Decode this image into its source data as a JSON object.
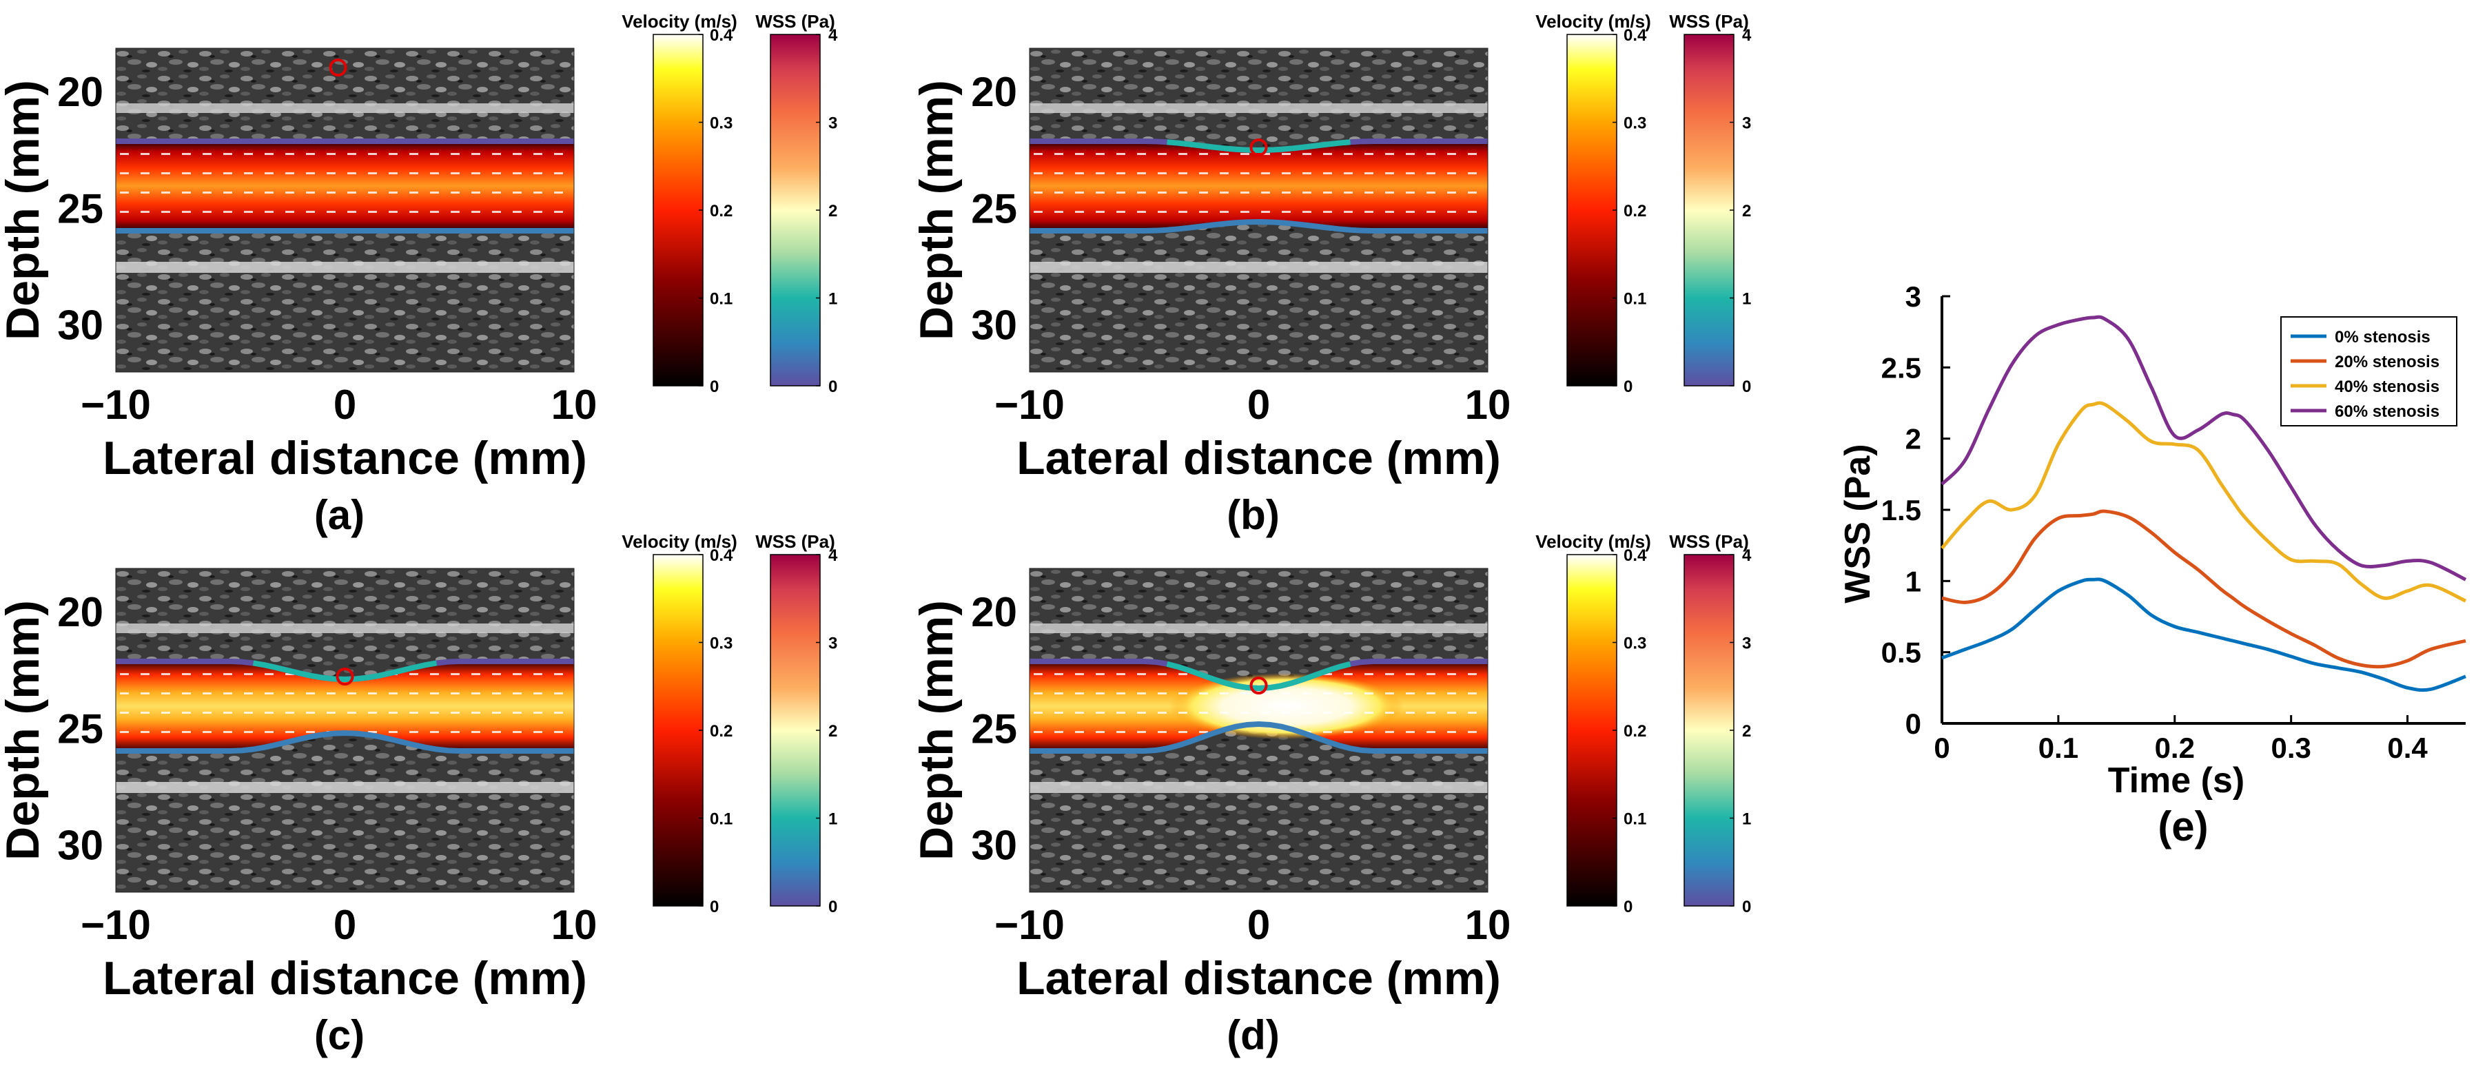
{
  "image_panels": [
    {
      "id": "a",
      "panel_label": "(a)",
      "xlabel": "Lateral distance (mm)",
      "ylabel": "Depth (mm)",
      "x_ticks": [
        "−10",
        "0",
        "10"
      ],
      "y_ticks": [
        "20",
        "25",
        "30"
      ],
      "stenosis_percent": 0,
      "velocity_colorbar": {
        "title": "Velocity (m/s)",
        "ticks": [
          "0.4",
          "0.3",
          "0.2",
          "0.1",
          "0"
        ]
      },
      "wss_colorbar": {
        "title": "WSS (Pa)",
        "ticks": [
          "4",
          "3",
          "2",
          "1",
          "0"
        ]
      }
    },
    {
      "id": "b",
      "panel_label": "(b)",
      "xlabel": "Lateral distance (mm)",
      "ylabel": "Depth (mm)",
      "x_ticks": [
        "−10",
        "0",
        "10"
      ],
      "y_ticks": [
        "20",
        "25",
        "30"
      ],
      "stenosis_percent": 20,
      "velocity_colorbar": {
        "title": "Velocity (m/s)",
        "ticks": [
          "0.4",
          "0.3",
          "0.2",
          "0.1",
          "0"
        ]
      },
      "wss_colorbar": {
        "title": "WSS (Pa)",
        "ticks": [
          "4",
          "3",
          "2",
          "1",
          "0"
        ]
      }
    },
    {
      "id": "c",
      "panel_label": "(c)",
      "xlabel": "Lateral distance (mm)",
      "ylabel": "Depth (mm)",
      "x_ticks": [
        "−10",
        "0",
        "10"
      ],
      "y_ticks": [
        "20",
        "25",
        "30"
      ],
      "stenosis_percent": 40,
      "velocity_colorbar": {
        "title": "Velocity (m/s)",
        "ticks": [
          "0.4",
          "0.3",
          "0.2",
          "0.1",
          "0"
        ]
      },
      "wss_colorbar": {
        "title": "WSS (Pa)",
        "ticks": [
          "4",
          "3",
          "2",
          "1",
          "0"
        ]
      }
    },
    {
      "id": "d",
      "panel_label": "(d)",
      "xlabel": "Lateral distance (mm)",
      "ylabel": "Depth (mm)",
      "x_ticks": [
        "−10",
        "0",
        "10"
      ],
      "y_ticks": [
        "20",
        "25",
        "30"
      ],
      "stenosis_percent": 60,
      "velocity_colorbar": {
        "title": "Velocity (m/s)",
        "ticks": [
          "0.4",
          "0.3",
          "0.2",
          "0.1",
          "0"
        ]
      },
      "wss_colorbar": {
        "title": "WSS (Pa)",
        "ticks": [
          "4",
          "3",
          "2",
          "1",
          "0"
        ]
      }
    }
  ],
  "chart_data": {
    "type": "line",
    "panel_label": "(e)",
    "title": "",
    "xlabel": "Time (s)",
    "ylabel": "WSS (Pa)",
    "xlim": [
      0,
      0.45
    ],
    "ylim": [
      0,
      3
    ],
    "x_ticks": [
      0,
      0.1,
      0.2,
      0.3,
      0.4
    ],
    "y_ticks": [
      0,
      0.5,
      1,
      1.5,
      2,
      2.5,
      3
    ],
    "x_tick_labels": [
      "0",
      "0.1",
      "0.2",
      "0.3",
      "0.4"
    ],
    "y_tick_labels": [
      "0",
      "0.5",
      "1",
      "1.5",
      "2",
      "2.5",
      "3"
    ],
    "legend_position": "top-right",
    "x": [
      0,
      0.02,
      0.04,
      0.06,
      0.08,
      0.1,
      0.12,
      0.13,
      0.14,
      0.16,
      0.18,
      0.2,
      0.22,
      0.24,
      0.25,
      0.26,
      0.28,
      0.3,
      0.32,
      0.34,
      0.36,
      0.38,
      0.4,
      0.42,
      0.45
    ],
    "series": [
      {
        "name": "0% stenosis",
        "color": "#0072BD",
        "values": [
          0.46,
          0.52,
          0.58,
          0.66,
          0.8,
          0.93,
          1.0,
          1.01,
          1.0,
          0.9,
          0.76,
          0.68,
          0.64,
          0.6,
          0.58,
          0.56,
          0.52,
          0.47,
          0.42,
          0.39,
          0.36,
          0.31,
          0.25,
          0.24,
          0.33
        ]
      },
      {
        "name": "20% stenosis",
        "color": "#D95319",
        "values": [
          0.88,
          0.85,
          0.9,
          1.05,
          1.3,
          1.44,
          1.46,
          1.47,
          1.49,
          1.45,
          1.34,
          1.2,
          1.08,
          0.94,
          0.88,
          0.82,
          0.72,
          0.63,
          0.55,
          0.46,
          0.41,
          0.4,
          0.44,
          0.52,
          0.58
        ]
      },
      {
        "name": "40% stenosis",
        "color": "#EDB120",
        "values": [
          1.23,
          1.42,
          1.56,
          1.5,
          1.6,
          1.96,
          2.2,
          2.24,
          2.24,
          2.12,
          1.98,
          1.96,
          1.92,
          1.68,
          1.56,
          1.45,
          1.28,
          1.15,
          1.14,
          1.12,
          0.98,
          0.88,
          0.93,
          0.97,
          0.86
        ]
      },
      {
        "name": "60% stenosis",
        "color": "#7E2F8E",
        "values": [
          1.68,
          1.85,
          2.2,
          2.52,
          2.72,
          2.8,
          2.84,
          2.85,
          2.84,
          2.7,
          2.36,
          2.02,
          2.06,
          2.17,
          2.17,
          2.13,
          1.92,
          1.66,
          1.4,
          1.22,
          1.11,
          1.11,
          1.14,
          1.13,
          1.01
        ]
      }
    ]
  }
}
